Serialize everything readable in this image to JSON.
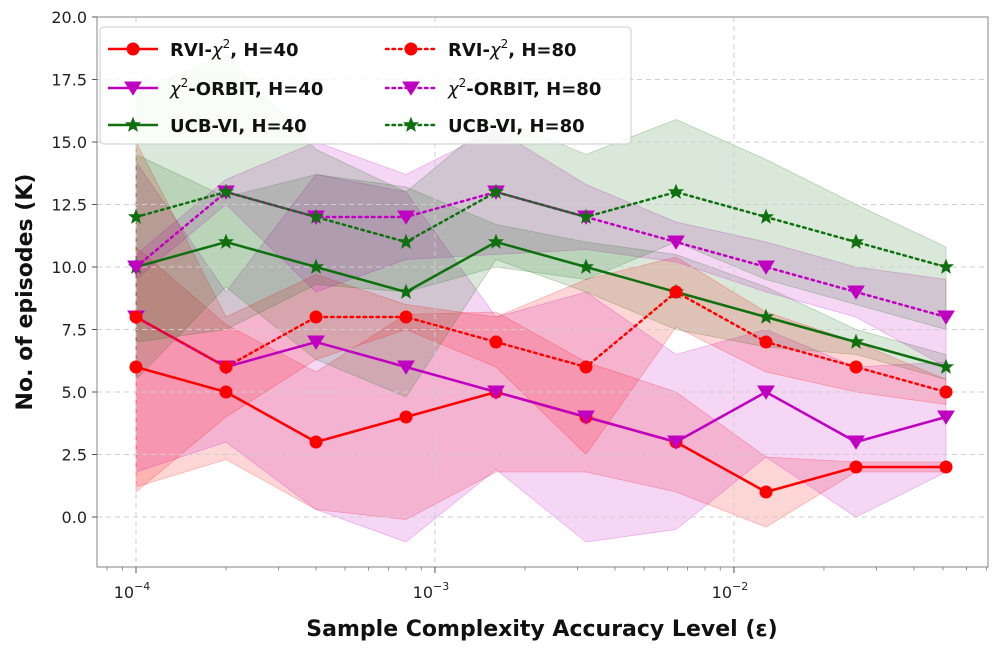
{
  "chart_data": {
    "type": "line",
    "xscale": "log",
    "x": [
      0.0001,
      0.0002,
      0.0004,
      0.0008,
      0.0016,
      0.0032,
      0.0064,
      0.0128,
      0.0256,
      0.0512
    ],
    "xlabel": "Sample Complexity Accuracy Level (ε)",
    "ylabel": "No. of episodes (K)",
    "ylim": [
      -2.0,
      20.0
    ],
    "yticks": [
      0.0,
      2.5,
      5.0,
      7.5,
      10.0,
      12.5,
      15.0,
      17.5,
      20.0
    ],
    "ytick_labels": [
      "0.0",
      "2.5",
      "5.0",
      "7.5",
      "10.0",
      "12.5",
      "15.0",
      "17.5",
      "20.0"
    ],
    "xticks": [
      0.0001,
      0.001,
      0.01
    ],
    "xtick_labels": [
      {
        "base": "10",
        "exp": "−4"
      },
      {
        "base": "10",
        "exp": "−3"
      },
      {
        "base": "10",
        "exp": "−2"
      }
    ],
    "grid": true,
    "legend": {
      "placement": "top-left",
      "columns": 2
    },
    "series": [
      {
        "name": "RVI-χ², H=40",
        "label_prefix": "RVI-",
        "label_sym": "χ",
        "label_sup": "2",
        "label_suffix": ", H=40",
        "color": "#ff0000",
        "linestyle": "solid",
        "marker": "circle",
        "values": [
          6,
          5,
          3,
          4,
          5,
          4,
          3,
          1,
          2,
          2
        ],
        "lower": [
          1.2,
          2.3,
          0.3,
          -0.1,
          1.8,
          1.8,
          1.0,
          -0.4,
          1.8,
          1.8
        ],
        "upper": [
          10.8,
          7.7,
          5.8,
          8.1,
          8.2,
          6.2,
          5.0,
          2.4,
          2.2,
          2.2
        ]
      },
      {
        "name": "χ²-ORBIT, H=40",
        "label_prefix": "",
        "label_sym": "χ",
        "label_sup": "2",
        "label_suffix": "-ORBIT, H=40",
        "color": "#c000c0",
        "linestyle": "solid",
        "marker": "triangle-down",
        "values": [
          8,
          6,
          7,
          6,
          5,
          4,
          3,
          5,
          3,
          4
        ],
        "lower": [
          1.8,
          3.0,
          0.3,
          -1.0,
          1.9,
          -1.0,
          -0.5,
          2.4,
          0.0,
          1.8
        ],
        "upper": [
          14.2,
          9.0,
          13.7,
          13.0,
          8.0,
          9.0,
          6.5,
          7.5,
          6.0,
          6.2
        ]
      },
      {
        "name": "UCB-VI, H=40",
        "label_prefix": "UCB-VI, H=40",
        "label_sym": "",
        "label_sup": "",
        "label_suffix": "",
        "color": "#107010",
        "linestyle": "solid",
        "marker": "star",
        "values": [
          10,
          11,
          10,
          9,
          11,
          10,
          9,
          8,
          7,
          6
        ],
        "lower": [
          5.5,
          9.2,
          6.3,
          4.8,
          10.3,
          9.0,
          7.5,
          6.8,
          6.5,
          5.5
        ],
        "upper": [
          14.5,
          12.8,
          13.7,
          13.2,
          11.7,
          11.0,
          10.5,
          9.2,
          7.5,
          6.5
        ]
      },
      {
        "name": "RVI-χ², H=80",
        "label_prefix": "RVI-",
        "label_sym": "χ",
        "label_sup": "2",
        "label_suffix": ", H=80",
        "color": "#ff0000",
        "linestyle": "dotted",
        "marker": "circle",
        "values": [
          8,
          6,
          8,
          8,
          7,
          6,
          9,
          7,
          6,
          5
        ],
        "lower": [
          1.0,
          4.0,
          6.3,
          7.5,
          6.0,
          2.5,
          7.6,
          5.8,
          5.0,
          4.5
        ],
        "upper": [
          15.0,
          8.0,
          9.7,
          8.5,
          8.0,
          9.5,
          10.4,
          8.2,
          7.0,
          5.5
        ]
      },
      {
        "name": "χ²-ORBIT, H=80",
        "label_prefix": "",
        "label_sym": "χ",
        "label_sup": "2",
        "label_suffix": "-ORBIT, H=80",
        "color": "#c000c0",
        "linestyle": "dotted",
        "marker": "triangle-down",
        "values": [
          10,
          13,
          12,
          12,
          13,
          12,
          11,
          10,
          9,
          8
        ],
        "lower": [
          9.5,
          12.5,
          9.0,
          10.3,
          10.5,
          10.7,
          10.2,
          9.0,
          8.0,
          6.0
        ],
        "upper": [
          10.5,
          13.5,
          15.0,
          13.7,
          15.5,
          13.3,
          11.8,
          11.0,
          10.0,
          9.5
        ]
      },
      {
        "name": "UCB-VI, H=80",
        "label_prefix": "UCB-VI, H=80",
        "label_sym": "",
        "label_sup": "",
        "label_suffix": "",
        "color": "#107010",
        "linestyle": "dotted",
        "marker": "star",
        "values": [
          12,
          13,
          12,
          11,
          13,
          12,
          13,
          12,
          11,
          10
        ],
        "lower": [
          7.0,
          7.5,
          9.3,
          9.0,
          10.0,
          9.5,
          11.0,
          9.5,
          8.5,
          7.5
        ],
        "upper": [
          17.0,
          18.5,
          14.7,
          13.0,
          16.0,
          14.5,
          15.9,
          14.3,
          12.5,
          10.8
        ]
      }
    ]
  }
}
